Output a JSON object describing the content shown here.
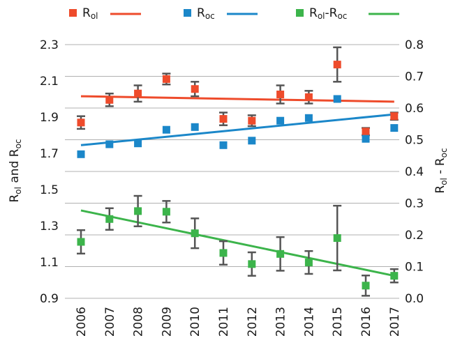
{
  "chart_data": {
    "type": "scatter",
    "x": [
      2006,
      2007,
      2008,
      2009,
      2010,
      2011,
      2012,
      2013,
      2014,
      2015,
      2016,
      2017
    ],
    "x_tick_labels": [
      "2006",
      "2007",
      "2008",
      "2009",
      "2010",
      "2011",
      "2012",
      "2013",
      "2014",
      "2015",
      "2016",
      "2017"
    ],
    "left_axis": {
      "label_main_1": "R",
      "label_sub_1": "ol",
      "label_main_2": " and R",
      "label_sub_2": "oc",
      "range": [
        0.9,
        2.3
      ],
      "tick_labels": [
        "0.9",
        "1.1",
        "1.3",
        "1.5",
        "1.7",
        "1.9",
        "2.1",
        "2.3"
      ],
      "tick_values": [
        0.9,
        1.1,
        1.3,
        1.5,
        1.7,
        1.9,
        2.1,
        2.3
      ]
    },
    "right_axis": {
      "label_main_1": "R",
      "label_sub_1": "ol",
      "label_main_2": " - R",
      "label_sub_2": "oc",
      "range": [
        0.0,
        0.8
      ],
      "tick_labels": [
        "0.0",
        "0.1",
        "0.2",
        "0.3",
        "0.4",
        "0.5",
        "0.6",
        "0.7",
        "0.8"
      ],
      "tick_values": [
        0.0,
        0.1,
        0.2,
        0.3,
        0.4,
        0.5,
        0.6,
        0.7,
        0.8
      ]
    },
    "grid": "horizontal",
    "legend_position": "top",
    "series": [
      {
        "key": "rol",
        "legend_main": "R",
        "legend_sub": "ol",
        "axis": "left",
        "color": "#ee4b2b",
        "values": [
          1.87,
          1.995,
          2.03,
          2.11,
          2.055,
          1.89,
          1.88,
          2.025,
          2.01,
          2.19,
          1.82,
          1.905
        ],
        "errors": [
          0.035,
          0.035,
          0.045,
          0.03,
          0.04,
          0.035,
          0.03,
          0.05,
          0.035,
          0.095,
          0.02,
          0.02
        ],
        "trendline": [
          2.015,
          1.985
        ]
      },
      {
        "key": "roc",
        "legend_main": "R",
        "legend_sub": "oc",
        "axis": "left",
        "color": "#1b87c9",
        "values": [
          1.695,
          1.75,
          1.755,
          1.83,
          1.845,
          1.745,
          1.77,
          1.88,
          1.895,
          2.0,
          1.78,
          1.84
        ],
        "errors": [],
        "trendline": [
          1.745,
          1.915
        ]
      },
      {
        "key": "diff",
        "legend_main_1": "R",
        "legend_sub_1": "ol",
        "legend_main_2": "-R",
        "legend_sub_2": "oc",
        "axis": "right",
        "color": "#3cb44b",
        "values": [
          0.178,
          0.25,
          0.275,
          0.273,
          0.205,
          0.143,
          0.108,
          0.14,
          0.113,
          0.19,
          0.04,
          0.071
        ],
        "errors": [
          0.037,
          0.034,
          0.048,
          0.034,
          0.047,
          0.037,
          0.037,
          0.053,
          0.036,
          0.102,
          0.032,
          0.021
        ],
        "trendline": [
          0.277,
          0.071
        ]
      }
    ]
  }
}
